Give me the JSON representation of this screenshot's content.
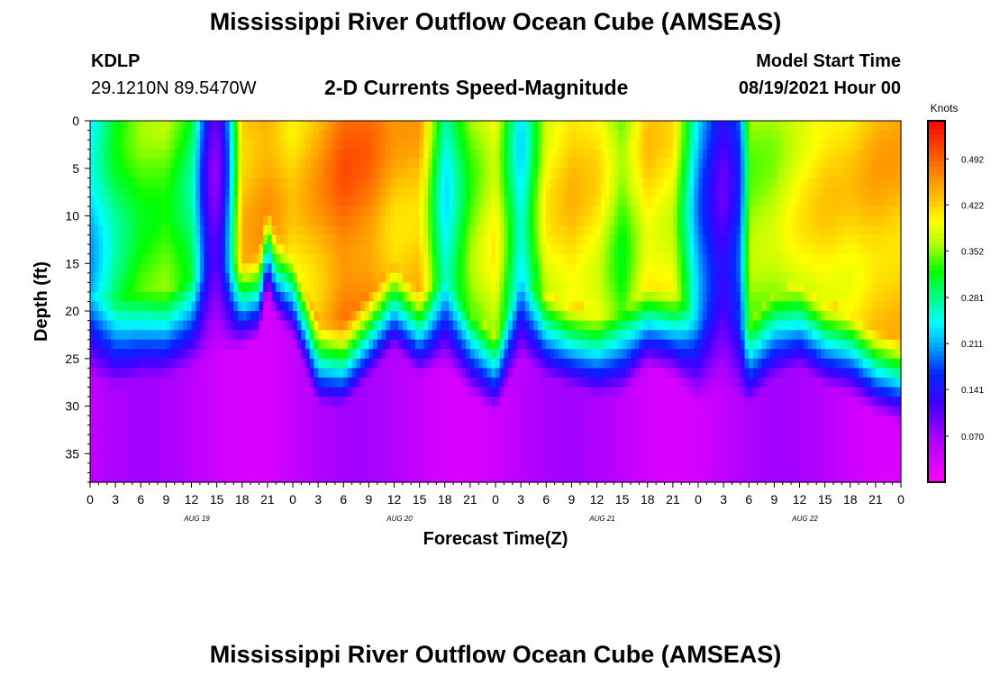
{
  "header": {
    "title": "Mississippi River Outflow Ocean Cube (AMSEAS)",
    "station": "KDLP",
    "coords": "29.1210N  89.5470W",
    "subtitle": "2-D Currents Speed-Magnitude",
    "model_label": "Model Start Time",
    "model_time": "08/19/2021 Hour 00"
  },
  "footer": {
    "title": "Mississippi River Outflow Ocean Cube (AMSEAS)"
  },
  "chart_data": {
    "type": "heatmap",
    "xlabel": "Forecast Time(Z)",
    "ylabel": "Depth (ft)",
    "ylim": [
      0,
      38
    ],
    "y_ticks": [
      "0",
      "5",
      "10",
      "15",
      "20",
      "25",
      "30",
      "35"
    ],
    "y_tick_values": [
      0,
      5,
      10,
      15,
      20,
      25,
      30,
      35
    ],
    "x_ticks": [
      "0",
      "3",
      "6",
      "9",
      "12",
      "15",
      "18",
      "21",
      "0",
      "3",
      "6",
      "9",
      "12",
      "15",
      "18",
      "21",
      "0",
      "3",
      "6",
      "9",
      "12",
      "15",
      "18",
      "21",
      "0",
      "3",
      "6",
      "9",
      "12",
      "15",
      "18",
      "21",
      "0"
    ],
    "x_range_hours": [
      0,
      96
    ],
    "date_labels": [
      "AUG 19",
      "AUG 20",
      "AUG 21",
      "AUG 22"
    ],
    "date_label_hours": [
      12,
      36,
      60,
      84
    ],
    "colorbar": {
      "unit": "Knots",
      "range": [
        0.0,
        0.55
      ],
      "tick_labels": [
        "0.492",
        "0.422",
        "0.352",
        "0.281",
        "0.211",
        "0.141",
        "0.070"
      ],
      "tick_values": [
        0.492,
        0.422,
        0.352,
        0.281,
        0.211,
        0.141,
        0.07
      ]
    },
    "speed_field": {
      "units": "knots",
      "surface_max_by_hour": [
        [
          0,
          0.23
        ],
        [
          3,
          0.3
        ],
        [
          6,
          0.34
        ],
        [
          9,
          0.35
        ],
        [
          12,
          0.3
        ],
        [
          14,
          0.12
        ],
        [
          15,
          0.1
        ],
        [
          16,
          0.16
        ],
        [
          18,
          0.44
        ],
        [
          21,
          0.46
        ],
        [
          24,
          0.42
        ],
        [
          27,
          0.45
        ],
        [
          30,
          0.49
        ],
        [
          33,
          0.48
        ],
        [
          36,
          0.44
        ],
        [
          39,
          0.44
        ],
        [
          42,
          0.25
        ],
        [
          45,
          0.35
        ],
        [
          48,
          0.4
        ],
        [
          51,
          0.24
        ],
        [
          54,
          0.4
        ],
        [
          57,
          0.43
        ],
        [
          60,
          0.41
        ],
        [
          63,
          0.34
        ],
        [
          66,
          0.42
        ],
        [
          69,
          0.4
        ],
        [
          72,
          0.21
        ],
        [
          74,
          0.14
        ],
        [
          75,
          0.12
        ],
        [
          77,
          0.18
        ],
        [
          78,
          0.36
        ],
        [
          81,
          0.37
        ],
        [
          84,
          0.4
        ],
        [
          87,
          0.42
        ],
        [
          90,
          0.42
        ],
        [
          93,
          0.44
        ],
        [
          96,
          0.44
        ]
      ],
      "mixed_layer_depth_ft_by_hour": [
        [
          0,
          24
        ],
        [
          3,
          25
        ],
        [
          6,
          24
        ],
        [
          9,
          24
        ],
        [
          12,
          23
        ],
        [
          15,
          22
        ],
        [
          18,
          21
        ],
        [
          20,
          20
        ],
        [
          21,
          15
        ],
        [
          22,
          18
        ],
        [
          24,
          20
        ],
        [
          27,
          27
        ],
        [
          30,
          27
        ],
        [
          33,
          24
        ],
        [
          36,
          21
        ],
        [
          39,
          24
        ],
        [
          42,
          23
        ],
        [
          45,
          26
        ],
        [
          48,
          28
        ],
        [
          51,
          22
        ],
        [
          54,
          24
        ],
        [
          57,
          25
        ],
        [
          60,
          26
        ],
        [
          63,
          26
        ],
        [
          66,
          23
        ],
        [
          69,
          24
        ],
        [
          72,
          27
        ],
        [
          75,
          25
        ],
        [
          78,
          27
        ],
        [
          81,
          24
        ],
        [
          84,
          23
        ],
        [
          87,
          25
        ],
        [
          90,
          26
        ],
        [
          93,
          28
        ],
        [
          96,
          29
        ]
      ],
      "bottom_speed": 0.05
    }
  }
}
